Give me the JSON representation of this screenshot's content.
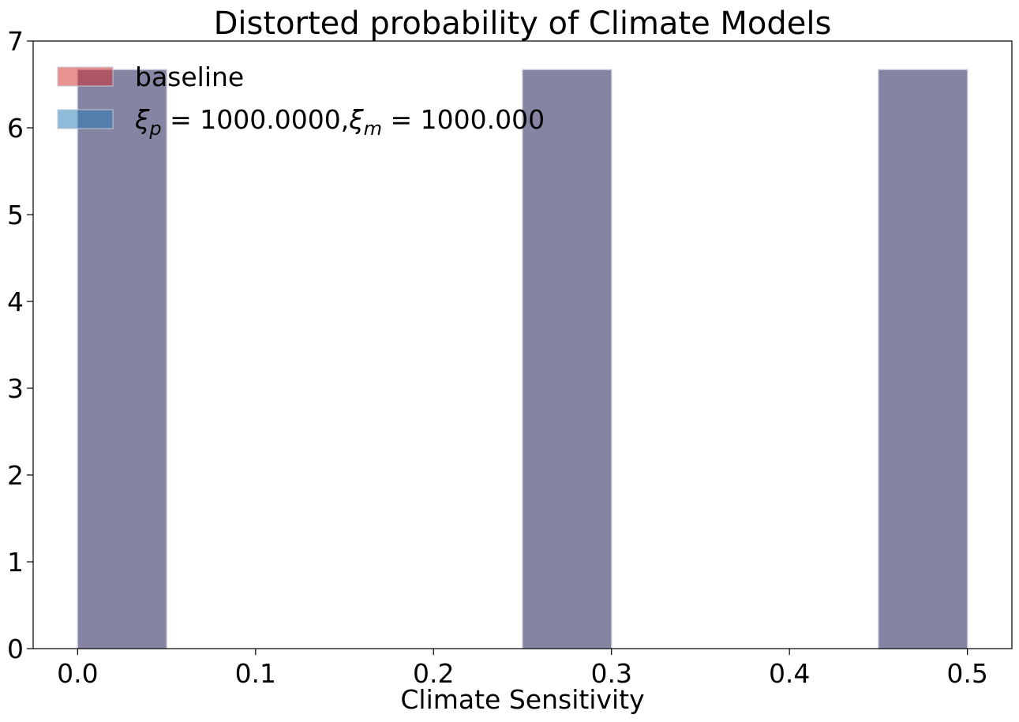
{
  "chart_data": {
    "type": "bar",
    "title": "Distorted probability of Climate Models",
    "xlabel": "Climate Sensitivity",
    "ylabel": "",
    "xlim": [
      -0.025,
      0.525
    ],
    "ylim": [
      0,
      7
    ],
    "x_ticks": [
      {
        "value": 0.0,
        "label": "0.0"
      },
      {
        "value": 0.1,
        "label": "0.1"
      },
      {
        "value": 0.2,
        "label": "0.2"
      },
      {
        "value": 0.3,
        "label": "0.3"
      },
      {
        "value": 0.4,
        "label": "0.4"
      },
      {
        "value": 0.5,
        "label": "0.5"
      }
    ],
    "y_ticks": [
      {
        "value": 0,
        "label": "0"
      },
      {
        "value": 1,
        "label": "1"
      },
      {
        "value": 2,
        "label": "2"
      },
      {
        "value": 3,
        "label": "3"
      },
      {
        "value": 4,
        "label": "4"
      },
      {
        "value": 5,
        "label": "5"
      },
      {
        "value": 6,
        "label": "6"
      },
      {
        "value": 7,
        "label": "7"
      }
    ],
    "grid": false,
    "legend_position": "top-left",
    "bin_width": 0.05,
    "bin_starts": [
      0.0,
      0.05,
      0.1,
      0.15,
      0.2,
      0.25,
      0.3,
      0.35,
      0.4,
      0.45
    ],
    "series": [
      {
        "name": "baseline",
        "color": "#d62728",
        "values": [
          6.67,
          0,
          0,
          0,
          0,
          6.67,
          0,
          0,
          0,
          6.67
        ]
      },
      {
        "name": "$\\xi_p = 1000.0000$,$\\xi_m = 1000.000$",
        "color": "#1f77b4",
        "values": [
          6.67,
          0,
          0,
          0,
          0,
          6.67,
          0,
          0,
          0,
          6.67
        ]
      }
    ],
    "overlap_color": "#8586a2"
  }
}
